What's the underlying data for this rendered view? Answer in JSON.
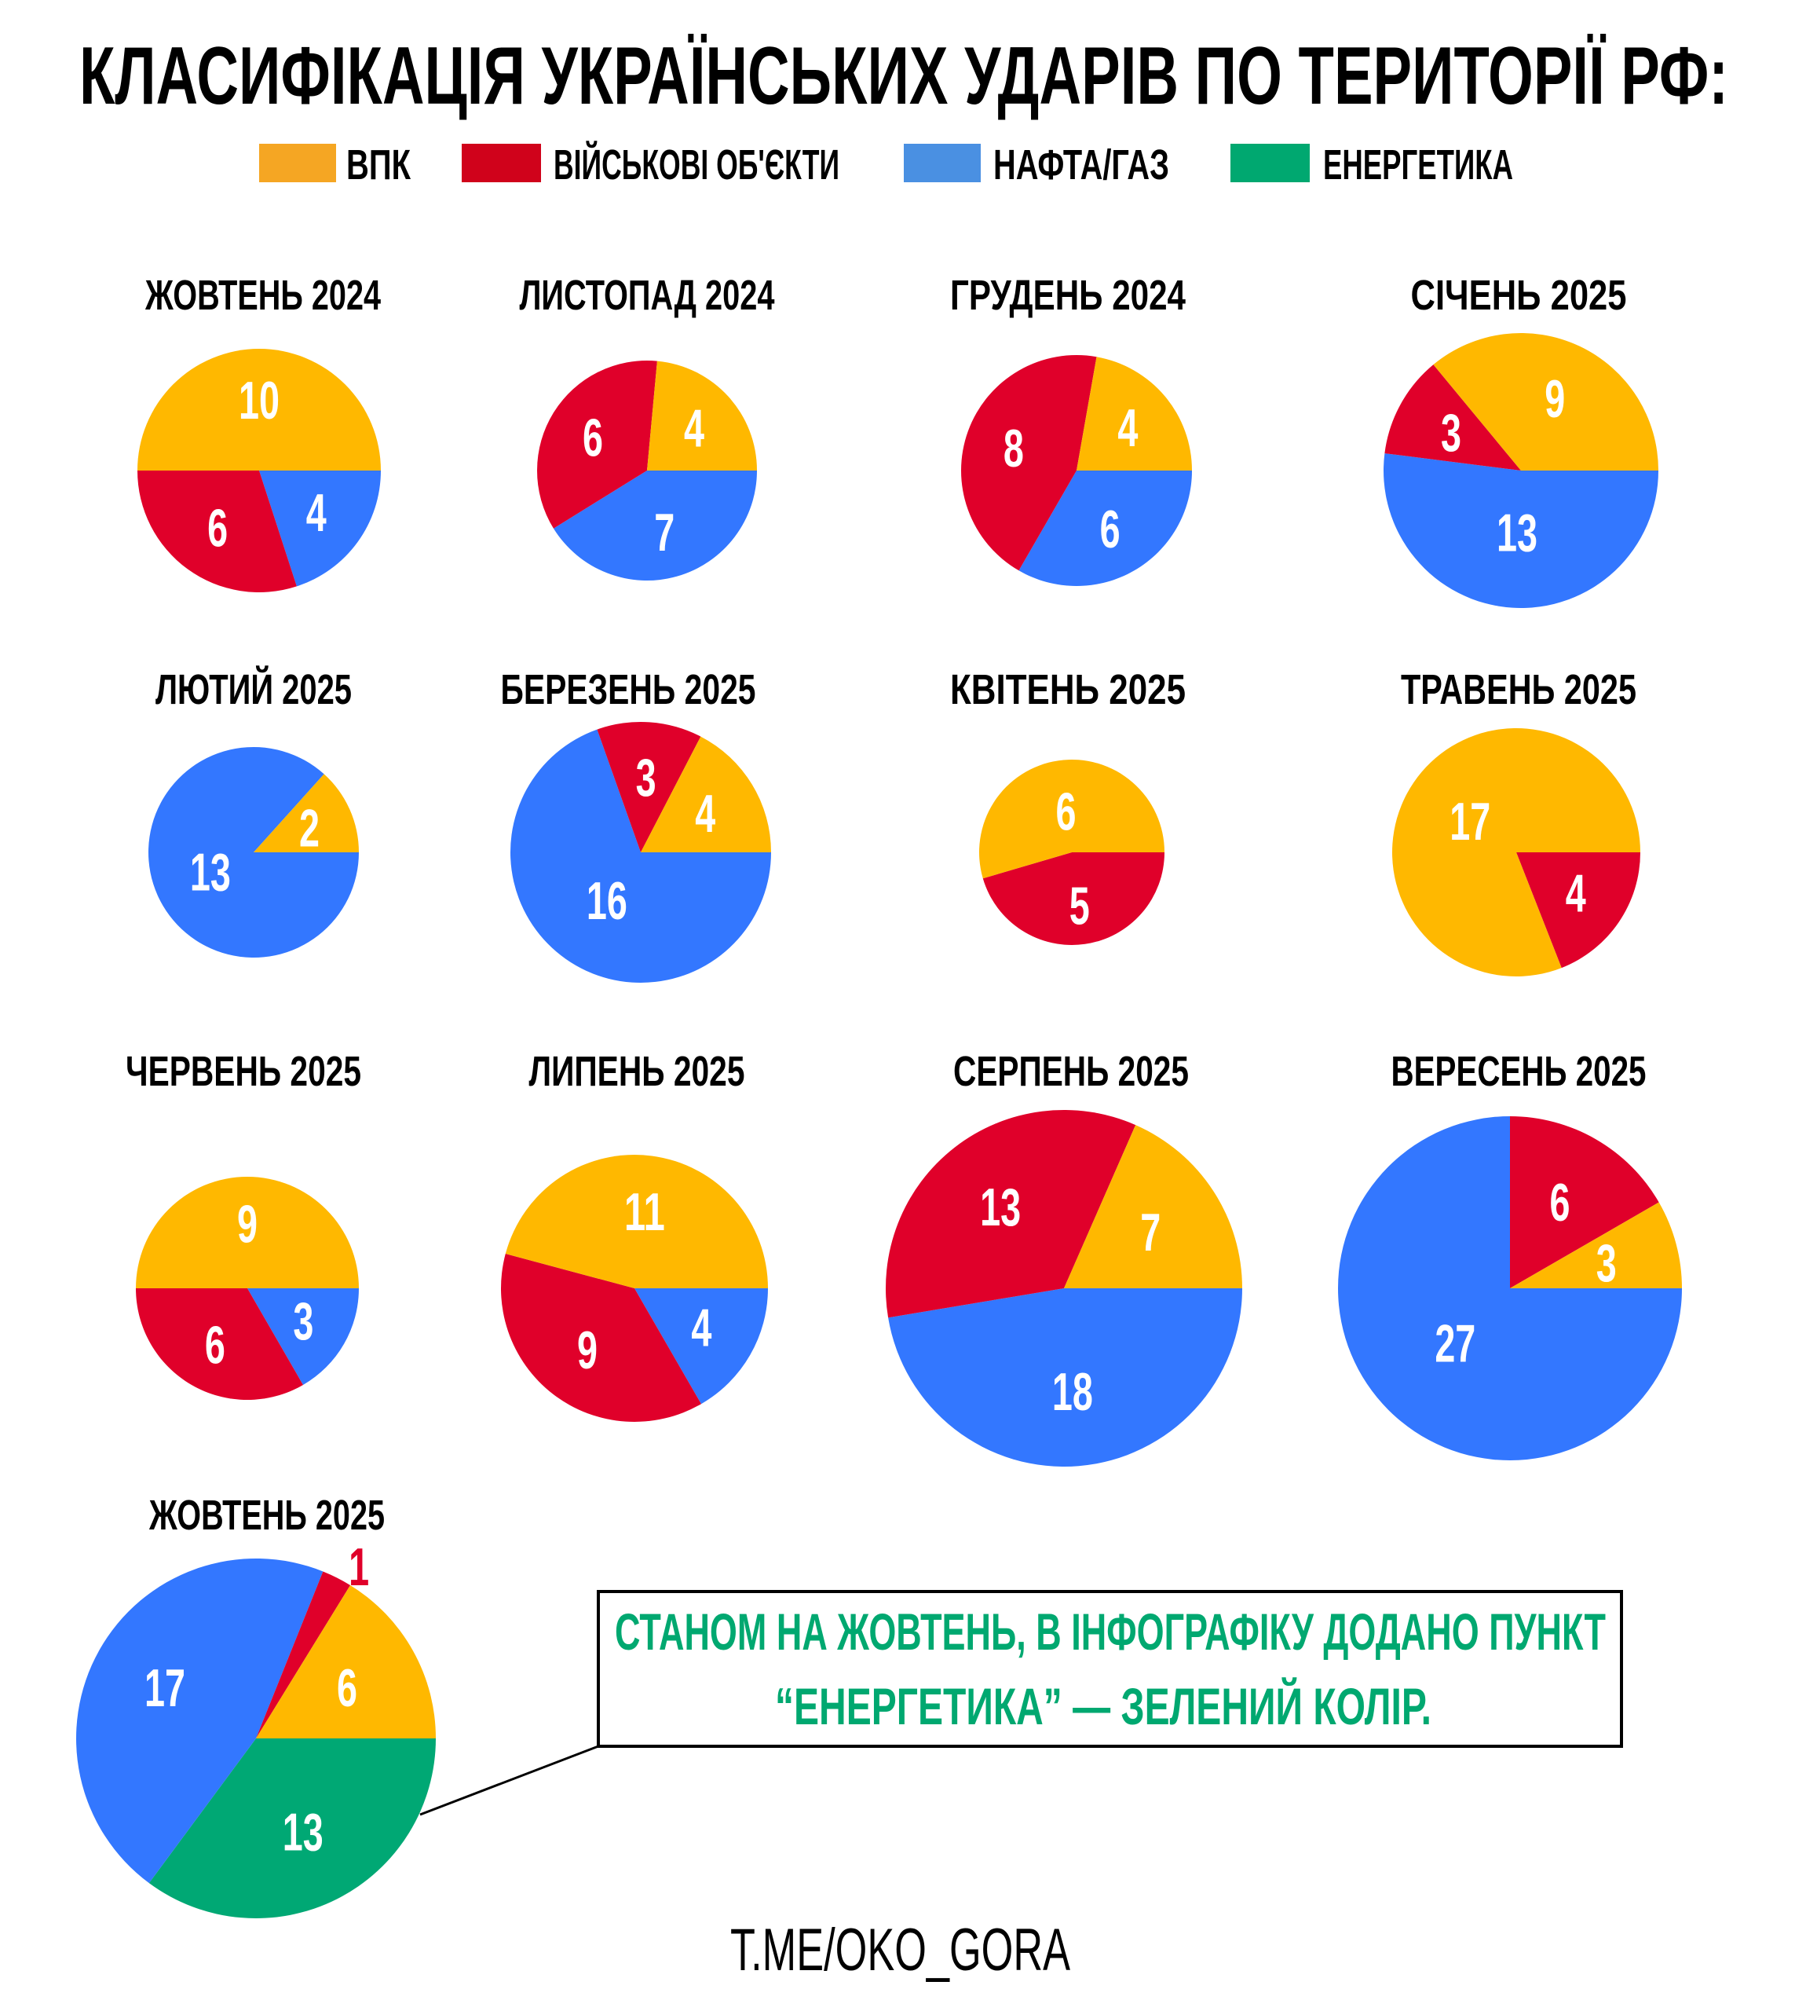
{
  "title": "КЛАСИФІКАЦІЯ УКРАЇНСЬКИХ УДАРІВ ПО ТЕРИТОРІЇ РФ:",
  "legend": [
    {
      "key": "vpk",
      "label": "ВПК",
      "color": "#F5A623"
    },
    {
      "key": "military",
      "label": "ВІЙСЬКОВІ ОБ'ЄКТИ",
      "color": "#D0021B"
    },
    {
      "key": "oilgas",
      "label": "НАФТА/ГАЗ",
      "color": "#4A90E2"
    },
    {
      "key": "energy",
      "label": "ЕНЕРГЕТИКА",
      "color": "#00A870"
    }
  ],
  "colors": {
    "vpk": "#FFB800",
    "military": "#E0002A",
    "oilgas": "#3377FF",
    "energy": "#00A874"
  },
  "chart_data": [
    {
      "type": "pie",
      "title": "ЖОВТЕНЬ 2024",
      "slices": {
        "oilgas": 4,
        "military": 6,
        "vpk": 10
      }
    },
    {
      "type": "pie",
      "title": "ЛИСТОПАД 2024",
      "slices": {
        "oilgas": 7,
        "military": 6,
        "vpk": 4
      }
    },
    {
      "type": "pie",
      "title": "ГРУДЕНЬ 2024",
      "slices": {
        "oilgas": 6,
        "military": 8,
        "vpk": 4
      }
    },
    {
      "type": "pie",
      "title": "СІЧЕНЬ 2025",
      "slices": {
        "oilgas": 13,
        "military": 3,
        "vpk": 9
      }
    },
    {
      "type": "pie",
      "title": "ЛЮТИЙ 2025",
      "slices": {
        "oilgas": 13,
        "vpk": 2
      }
    },
    {
      "type": "pie",
      "title": "БЕРЕЗЕНЬ 2025",
      "slices": {
        "oilgas": 16,
        "military": 3,
        "vpk": 4
      }
    },
    {
      "type": "pie",
      "title": "КВІТЕНЬ 2025",
      "slices": {
        "military": 5,
        "vpk": 6
      }
    },
    {
      "type": "pie",
      "title": "ТРАВЕНЬ 2025",
      "slices": {
        "military": 4,
        "vpk": 17
      }
    },
    {
      "type": "pie",
      "title": "ЧЕРВЕНЬ 2025",
      "slices": {
        "oilgas": 3,
        "military": 6,
        "vpk": 9
      }
    },
    {
      "type": "pie",
      "title": "ЛИПЕНЬ 2025",
      "slices": {
        "oilgas": 4,
        "military": 9,
        "vpk": 11
      }
    },
    {
      "type": "pie",
      "title": "СЕРПЕНЬ 2025",
      "slices": {
        "oilgas": 18,
        "military": 13,
        "vpk": 7
      }
    },
    {
      "type": "pie",
      "title": "ВЕРЕСЕНЬ 2025",
      "slices": {
        "oilgas": 27,
        "military": 6,
        "vpk": 3
      }
    },
    {
      "type": "pie",
      "title": "ЖОВТЕНЬ 2025",
      "slices": {
        "energy": 13,
        "oilgas": 17,
        "military": 1,
        "vpk": 6
      }
    }
  ],
  "callout": {
    "line1": "СТАНОМ НА ЖОВТЕНЬ, В ІНФОГРАФІКУ ДОДАНО ПУНКТ",
    "line2": "“ЕНЕРГЕТИКА” — ЗЕЛЕНИЙ КОЛІР."
  },
  "footer": "T.ME/OKO_GORA"
}
